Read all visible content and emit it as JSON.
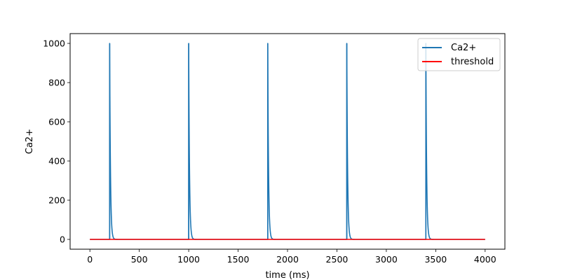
{
  "chart_data": {
    "type": "line",
    "title": "",
    "xlabel": "time (ms)",
    "ylabel": "Ca2+",
    "xlim": [
      -200,
      4200
    ],
    "ylim": [
      -50,
      1050
    ],
    "xticks": [
      0,
      500,
      1000,
      1500,
      2000,
      2500,
      3000,
      3500,
      4000
    ],
    "yticks": [
      0,
      200,
      400,
      600,
      800,
      1000
    ],
    "x_range": [
      0,
      4000
    ],
    "grid": false,
    "legend": "top-right",
    "series": [
      {
        "name": "Ca2+",
        "color": "#1f77b4",
        "baseline": 0,
        "spikes": [
          {
            "t": 200,
            "peak": 1000
          },
          {
            "t": 1000,
            "peak": 1000
          },
          {
            "t": 1800,
            "peak": 1000
          },
          {
            "t": 2600,
            "peak": 1000
          },
          {
            "t": 3400,
            "peak": 1000
          }
        ],
        "decay_tau_ms": 8
      },
      {
        "name": "threshold",
        "color": "#ff0000",
        "value": 0
      }
    ]
  }
}
